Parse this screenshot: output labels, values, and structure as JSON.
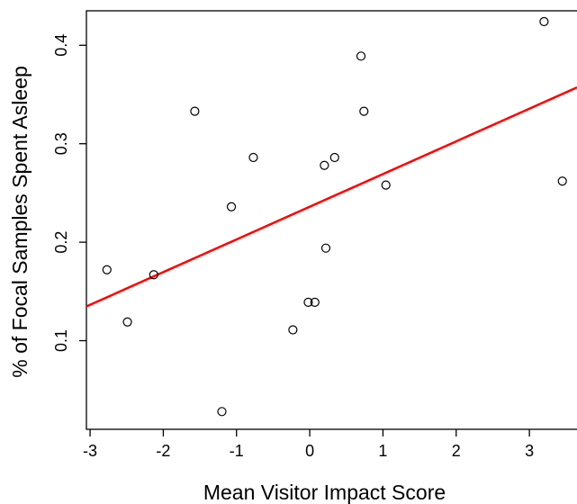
{
  "chart_data": {
    "type": "scatter",
    "title": "",
    "xlabel": "Mean Visitor Impact Score",
    "ylabel": "% of Focal Samples Spent Asleep",
    "xlim": [
      -3.05,
      3.65
    ],
    "ylim": [
      0.01,
      0.435
    ],
    "x_ticks": [
      -3,
      -2,
      -1,
      0,
      1,
      2,
      3
    ],
    "y_ticks": [
      0.1,
      0.2,
      0.3,
      0.4
    ],
    "x_tick_labels": [
      "-3",
      "-2",
      "-1",
      "0",
      "1",
      "2",
      "3"
    ],
    "y_tick_labels": [
      "0.1",
      "0.2",
      "0.3",
      "0.4"
    ],
    "grid": false,
    "colors": {
      "points": "#000000",
      "trend": "#ff0000",
      "axes": "#000000"
    },
    "points": [
      {
        "x": -2.77,
        "y": 0.172
      },
      {
        "x": -2.49,
        "y": 0.119
      },
      {
        "x": -2.13,
        "y": 0.167
      },
      {
        "x": -1.57,
        "y": 0.333
      },
      {
        "x": -1.2,
        "y": 0.028
      },
      {
        "x": -1.07,
        "y": 0.236
      },
      {
        "x": -0.77,
        "y": 0.286
      },
      {
        "x": -0.23,
        "y": 0.111
      },
      {
        "x": -0.02,
        "y": 0.139
      },
      {
        "x": 0.07,
        "y": 0.139
      },
      {
        "x": 0.2,
        "y": 0.278
      },
      {
        "x": 0.22,
        "y": 0.194
      },
      {
        "x": 0.34,
        "y": 0.286
      },
      {
        "x": 0.7,
        "y": 0.389
      },
      {
        "x": 0.74,
        "y": 0.333
      },
      {
        "x": 1.04,
        "y": 0.258
      },
      {
        "x": 3.2,
        "y": 0.424
      },
      {
        "x": 3.45,
        "y": 0.262
      }
    ],
    "trend_line": {
      "slope": 0.0332,
      "intercept": 0.236,
      "x_range": [
        -3.05,
        3.65
      ]
    }
  }
}
